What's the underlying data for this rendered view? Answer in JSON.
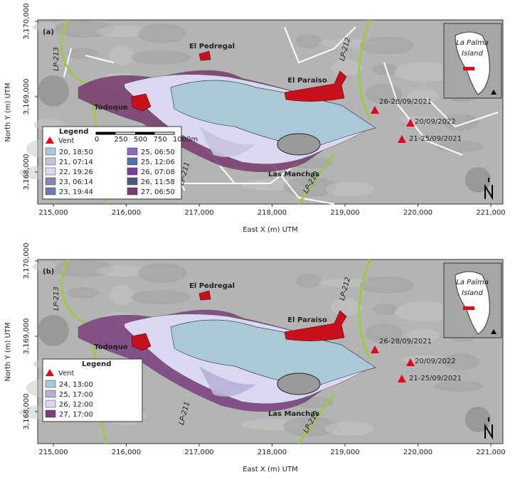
{
  "panels": [
    {
      "label": "(a)",
      "x_ticks": [
        "215,000",
        "216,000",
        "217,000",
        "218,000",
        "219,000",
        "220,000",
        "221,000"
      ],
      "y_ticks": [
        "3,170,000",
        "3,169,000",
        "3,168,000"
      ],
      "x_axis_label": "East X (m) UTM",
      "y_axis_label": "North Y (m) UTM",
      "places": [
        "El Pedregal",
        "El Paraiso",
        "Todoque",
        "Las Manchas"
      ],
      "roads": [
        "LP-213",
        "LP-212",
        "LP-211",
        "LP-212"
      ],
      "vents": [
        "26-28/09/2021",
        "20/09/2022",
        "21-25/09/2021"
      ],
      "inset": [
        "La Palma",
        "Island"
      ],
      "scale_bar": [
        "0",
        "250",
        "500",
        "750",
        "1000m"
      ],
      "legend": {
        "title": "Legend",
        "vent": "Vent",
        "entries": [
          {
            "label": "20, 18:50",
            "color": "#a9c9d8"
          },
          {
            "label": "21, 07:14",
            "color": "#c9c3e0"
          },
          {
            "label": "22, 19:26",
            "color": "#dcd8f3"
          },
          {
            "label": "23, 06:14",
            "color": "#8f83b6"
          },
          {
            "label": "23, 19:44",
            "color": "#6f79b9"
          },
          {
            "label": "25, 06:50",
            "color": "#8b6bbd"
          },
          {
            "label": "25, 12:06",
            "color": "#4f72ad"
          },
          {
            "label": "26, 07:08",
            "color": "#7a3ea6"
          },
          {
            "label": "26, 11:58",
            "color": "#4b5a78"
          },
          {
            "label": "27, 06:50",
            "color": "#7a3b6e"
          }
        ]
      }
    },
    {
      "label": "(b)",
      "x_ticks": [
        "215,000",
        "216,000",
        "217,000",
        "218,000",
        "219,000",
        "220,000",
        "221,000"
      ],
      "y_ticks": [
        "3,170,000",
        "3,169,000",
        "3,168,000"
      ],
      "x_axis_label": "East X (m) UTM",
      "y_axis_label": "North Y (m) UTM",
      "places": [
        "El Pedregal",
        "El Paraiso",
        "Todoque",
        "Las Manchas"
      ],
      "roads": [
        "LP-213",
        "LP-212",
        "LP-211",
        "LP-212"
      ],
      "vents": [
        "26-28/09/2021",
        "20/09/2022",
        "21-25/09/2021"
      ],
      "inset": [
        "La Palma",
        "Island"
      ],
      "legend": {
        "title": "Legend",
        "vent": "Vent",
        "entries": [
          {
            "label": "24, 13:00",
            "color": "#a9c9d8"
          },
          {
            "label": "25, 17:00",
            "color": "#b8b1d6"
          },
          {
            "label": "26, 12:00",
            "color": "#dcd8f3"
          },
          {
            "label": "27, 17:00",
            "color": "#7b3f80"
          }
        ]
      }
    }
  ]
}
